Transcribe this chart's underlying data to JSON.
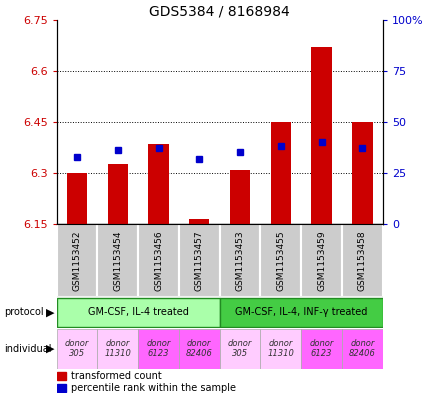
{
  "title": "GDS5384 / 8168984",
  "samples": [
    "GSM1153452",
    "GSM1153454",
    "GSM1153456",
    "GSM1153457",
    "GSM1153453",
    "GSM1153455",
    "GSM1153459",
    "GSM1153458"
  ],
  "red_values": [
    6.3,
    6.325,
    6.385,
    6.165,
    6.31,
    6.45,
    6.67,
    6.45
  ],
  "blue_values_pct": [
    33,
    36,
    37,
    32,
    35,
    38,
    40,
    37
  ],
  "y_min": 6.15,
  "y_max": 6.75,
  "y_ticks_left": [
    6.15,
    6.3,
    6.45,
    6.6,
    6.75
  ],
  "y_ticks_left_labels": [
    "6.15",
    "6.3",
    "6.45",
    "6.6",
    "6.75"
  ],
  "y_ticks_right_pct": [
    0,
    25,
    50,
    75,
    100
  ],
  "y_ticks_right_labels": [
    "0",
    "25",
    "50",
    "75",
    "100%"
  ],
  "dotted_lines": [
    6.3,
    6.45,
    6.6
  ],
  "protocol_groups": [
    {
      "label": "GM-CSF, IL-4 treated",
      "start": 0,
      "end": 3,
      "color": "#aaffaa"
    },
    {
      "label": "GM-CSF, IL-4, INF-γ treated",
      "start": 4,
      "end": 7,
      "color": "#44cc44"
    }
  ],
  "individuals": [
    {
      "label": "donor\n305",
      "color": "#ffccff"
    },
    {
      "label": "donor\n11310",
      "color": "#ffccff"
    },
    {
      "label": "donor\n6123",
      "color": "#ff66ff"
    },
    {
      "label": "donor\n82406",
      "color": "#ff66ff"
    },
    {
      "label": "donor\n305",
      "color": "#ffccff"
    },
    {
      "label": "donor\n11310",
      "color": "#ffccff"
    },
    {
      "label": "donor\n6123",
      "color": "#ff66ff"
    },
    {
      "label": "donor\n82406",
      "color": "#ff66ff"
    }
  ],
  "red_color": "#cc0000",
  "blue_color": "#0000cc",
  "bar_width": 0.5,
  "baseline": 6.15,
  "sample_box_color": "#cccccc",
  "protocol_border_color": "#228B22"
}
